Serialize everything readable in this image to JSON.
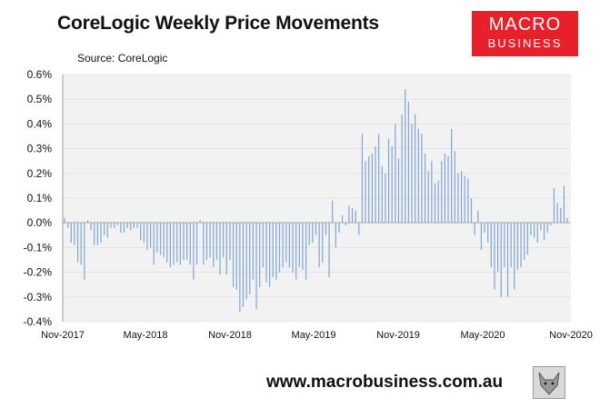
{
  "header": {
    "title": "CoreLogic Weekly Price Movements",
    "source": "Source: CoreLogic"
  },
  "logo": {
    "line1": "MACRO",
    "line2": "BUSINESS",
    "color": "#e8202a"
  },
  "footer": {
    "url": "www.macrobusiness.com.au"
  },
  "chart_data": {
    "type": "bar",
    "title": "CoreLogic Weekly Price Movements",
    "xlabel": "",
    "ylabel": "",
    "ylim": [
      -0.4,
      0.6
    ],
    "y_ticks": [
      "0.6%",
      "0.5%",
      "0.4%",
      "0.3%",
      "0.2%",
      "0.1%",
      "0.0%",
      "-0.1%",
      "-0.2%",
      "-0.3%",
      "-0.4%"
    ],
    "x_ticks": [
      "Nov-2017",
      "May-2018",
      "Nov-2018",
      "May-2019",
      "Nov-2019",
      "May-2020",
      "Nov-2020"
    ],
    "bar_color": "#7ea6d6",
    "plot_background": "#f2f2f2",
    "grid": true,
    "series": [
      {
        "values": [
          0.02,
          -0.02,
          -0.08,
          -0.09,
          -0.16,
          -0.17,
          -0.23,
          0.01,
          -0.03,
          -0.09,
          -0.09,
          -0.08,
          -0.05,
          -0.06,
          -0.02,
          -0.02,
          -0.01,
          -0.04,
          -0.04,
          -0.02,
          -0.03,
          -0.02,
          -0.02,
          -0.07,
          -0.08,
          -0.11,
          -0.1,
          -0.17,
          -0.12,
          -0.13,
          -0.14,
          -0.16,
          -0.18,
          -0.17,
          -0.16,
          -0.17,
          -0.15,
          -0.15,
          -0.17,
          -0.23,
          -0.17,
          0.01,
          -0.17,
          -0.15,
          -0.14,
          -0.18,
          -0.15,
          -0.21,
          -0.14,
          -0.21,
          -0.15,
          -0.26,
          -0.27,
          -0.36,
          -0.34,
          -0.31,
          -0.29,
          -0.23,
          -0.35,
          -0.26,
          -0.18,
          -0.24,
          -0.26,
          -0.22,
          -0.23,
          -0.2,
          -0.18,
          -0.16,
          -0.18,
          -0.2,
          -0.23,
          -0.18,
          -0.19,
          -0.23,
          -0.09,
          -0.08,
          -0.05,
          -0.18,
          -0.16,
          -0.05,
          -0.22,
          0.09,
          -0.1,
          -0.04,
          0.03,
          -0.01,
          0.07,
          0.06,
          0.05,
          -0.05,
          0.36,
          0.25,
          0.27,
          0.28,
          0.31,
          0.36,
          0.23,
          0.2,
          0.34,
          0.31,
          0.4,
          0.26,
          0.44,
          0.54,
          0.49,
          0.4,
          0.44,
          0.38,
          0.36,
          0.28,
          0.21,
          0.25,
          0.16,
          0.17,
          0.25,
          0.28,
          0.27,
          0.38,
          0.29,
          0.2,
          0.21,
          0.19,
          0.18,
          0.1,
          -0.05,
          0.05,
          -0.11,
          -0.04,
          -0.08,
          -0.18,
          -0.27,
          -0.2,
          -0.3,
          -0.18,
          -0.3,
          -0.18,
          -0.27,
          -0.19,
          -0.18,
          -0.15,
          -0.13,
          -0.05,
          -0.06,
          -0.08,
          -0.03,
          -0.07,
          -0.04,
          -0.01,
          0.14,
          0.08,
          0.06,
          0.15,
          0.02
        ]
      }
    ]
  }
}
